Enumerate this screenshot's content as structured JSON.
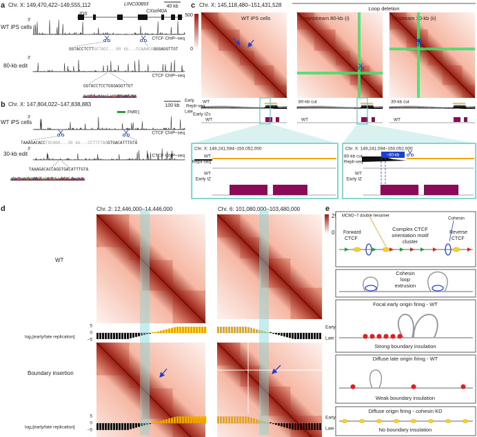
{
  "a": {
    "label": "a",
    "region": "Chr. X: 149,470,422–149,555,112",
    "scale": "40 kb",
    "genes": [
      "IDS",
      "LINC00893",
      "CXorf40A"
    ],
    "wt": "WT iPS cells",
    "edit": "80-kb edit",
    "prime": [
      "3′",
      "3′"
    ],
    "track": [
      "CTCF ChIP–seq",
      "CTCF ChIP–seq"
    ],
    "wt_seq": [
      "GGTACCTCTT",
      "GCTACC...80 kb...CCAAACG",
      "GGGAGGTTGT"
    ],
    "edit_seq": "GGTACCTCCTGGGAGGTTGT"
  },
  "b": {
    "label": "b",
    "region": "Chr. X: 147,804,022–147,838,883",
    "scale": "100 kb",
    "gene": "FMR1",
    "wt": "WT iPS cells",
    "edit": "30-kb edit",
    "prime": [
      "3′",
      "3′"
    ],
    "track": [
      "CTCF ChIP–seq",
      "CTCF ChIP–seq"
    ],
    "wt_seq": [
      "TAAAGACACC",
      "TGCAGG...30 kb...CCTTCTAG",
      "GTGACATTTGTA"
    ],
    "edit_seq": "TAAAGACACCAGGTGACATTTGTA"
  },
  "c": {
    "label": "c",
    "region": "Chr. X: 145,118,480–151,431,528",
    "group": "Loop deletion",
    "maps": [
      "WT iPS cells",
      "Downstream 80-kb (i)",
      "Upstream 30-kb (ii)"
    ],
    "colorbar": [
      "500",
      "0"
    ],
    "repli": {
      "early": "Early",
      "name": "Repli-seq",
      "late": "Late",
      "samples": [
        "WT",
        "80-kb cut",
        "30-kb cut"
      ]
    },
    "iz": {
      "name": "Early IZs",
      "samples": [
        "WT",
        "WT",
        "WT"
      ]
    },
    "zoom": [
      {
        "region": "Chr. X: 149,241,594–150,052,000",
        "track": [
          "WT",
          "Repli-seq"
        ],
        "iz": [
          "WT",
          "Early IZ"
        ]
      },
      {
        "region": "Chr. X: 149,241,594–150,052,000",
        "track": [
          "80-kb cut",
          "Repli-seq"
        ],
        "deletion": "~80-kb",
        "iz": [
          "WT",
          "Early IZ"
        ]
      }
    ]
  },
  "d": {
    "label": "d",
    "regions": [
      "Chr. 2: 12,446,000–14,446,000",
      "Chr. 6: 101,080,000–103,480,000"
    ],
    "colorbar": [
      "25",
      "0"
    ],
    "rows": [
      {
        "name": "WT",
        "axis": "log₂[early/late replication]",
        "ticks": [
          "5",
          "0",
          "−5"
        ],
        "early": "Early",
        "late": "Late"
      },
      {
        "name": "Boundary insertion",
        "axis": "log₂[early/late replication]",
        "ticks": [
          "5",
          "0",
          "−5"
        ],
        "early": "Early",
        "late": "Late"
      }
    ]
  },
  "e": {
    "label": "e",
    "box1": {
      "mcm": "MCM2–7 double hexamer",
      "cohesin": "Cohesin",
      "forward": [
        "Forward",
        "CTCF"
      ],
      "complex": [
        "Complex CTCF",
        "orientation motif",
        "cluster"
      ],
      "reverse": [
        "Reverse",
        "CTCF"
      ]
    },
    "box2": [
      "Cohesin",
      "loop",
      "extrusion"
    ],
    "box3": [
      "Focal early origin firing - WT",
      "Strong boundary insulation"
    ],
    "box4": [
      "Diffuse late origin firing - WT",
      "Weak boundary insulation"
    ],
    "box5": [
      "Diffuse origin firing - cohesin KD",
      "No boundary insulation"
    ]
  }
}
